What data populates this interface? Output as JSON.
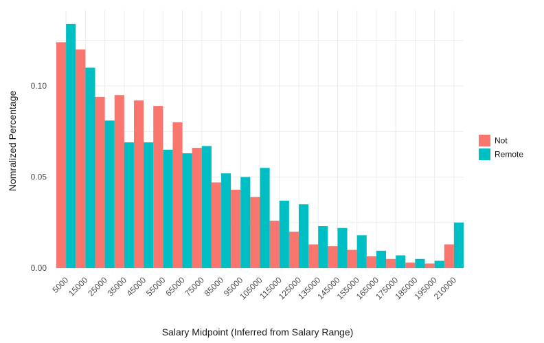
{
  "chart_data": {
    "type": "bar",
    "title": "",
    "xlabel": "Salary Midpoint (Inferred from Salary Range)",
    "ylabel": "Nomralized Percentage",
    "categories": [
      "5000",
      "15000",
      "25000",
      "35000",
      "45000",
      "55000",
      "65000",
      "75000",
      "85000",
      "95000",
      "105000",
      "115000",
      "125000",
      "135000",
      "145000",
      "155000",
      "165000",
      "175000",
      "185000",
      "195000",
      "210000"
    ],
    "series": [
      {
        "name": "Not",
        "color": "#F8766D",
        "values": [
          0.124,
          0.12,
          0.094,
          0.095,
          0.092,
          0.089,
          0.08,
          0.066,
          0.047,
          0.043,
          0.039,
          0.026,
          0.02,
          0.013,
          0.012,
          0.01,
          0.0065,
          0.005,
          0.003,
          0.0025,
          0.013
        ]
      },
      {
        "name": "Remote",
        "color": "#00BFC4",
        "values": [
          0.134,
          0.11,
          0.081,
          0.069,
          0.069,
          0.065,
          0.063,
          0.067,
          0.052,
          0.05,
          0.055,
          0.037,
          0.035,
          0.023,
          0.022,
          0.018,
          0.0095,
          0.007,
          0.005,
          0.004,
          0.025
        ]
      }
    ],
    "ylim": [
      0,
      0.1415
    ],
    "yticks": [
      0.0,
      0.05,
      0.1
    ],
    "ytick_labels": [
      "0.00",
      "0.05",
      "0.10"
    ],
    "grid": true,
    "legend_position": "right"
  }
}
